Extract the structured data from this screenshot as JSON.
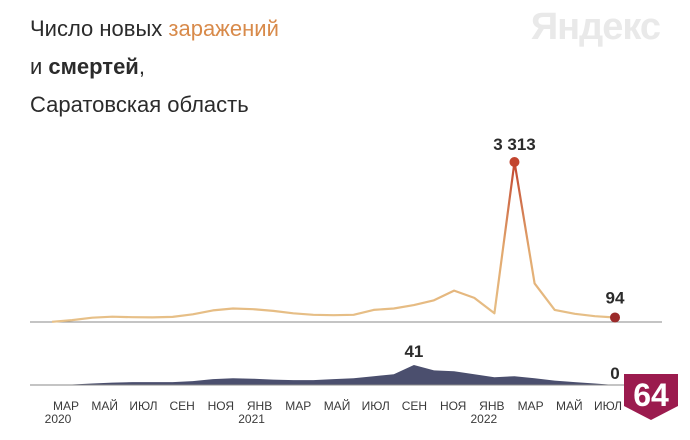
{
  "header": {
    "title_part1": "Число новых ",
    "title_accent": "заражений",
    "title_line2_prefix": "и ",
    "title_line2_bold": "смертей",
    "title_line2_suffix": ",",
    "title_line3": "Саратовская область"
  },
  "brand": {
    "name": "Яндекс"
  },
  "badge": {
    "label": "64",
    "color": "#9b1b4e"
  },
  "colors": {
    "accent": "#d88a4a",
    "cases_low": "#e7c189",
    "cases_high": "#c2452f",
    "deaths_fill": "#4b4f6e",
    "axis": "#8a8a8a"
  },
  "chart_data": [
    {
      "type": "area",
      "name": "cases",
      "x_start": "2020-03",
      "x_end": "2022-07",
      "peak": {
        "x": "2022-02",
        "value": 3313,
        "label": "3 313"
      },
      "last": {
        "x": "2022-07",
        "value": 94,
        "label": "94"
      },
      "points": [
        [
          "2020-03",
          5
        ],
        [
          "2020-04",
          40
        ],
        [
          "2020-05",
          90
        ],
        [
          "2020-06",
          110
        ],
        [
          "2020-07",
          100
        ],
        [
          "2020-08",
          95
        ],
        [
          "2020-09",
          105
        ],
        [
          "2020-10",
          160
        ],
        [
          "2020-11",
          240
        ],
        [
          "2020-12",
          280
        ],
        [
          "2021-01",
          265
        ],
        [
          "2021-02",
          230
        ],
        [
          "2021-03",
          180
        ],
        [
          "2021-04",
          150
        ],
        [
          "2021-05",
          140
        ],
        [
          "2021-06",
          150
        ],
        [
          "2021-07",
          250
        ],
        [
          "2021-08",
          280
        ],
        [
          "2021-09",
          350
        ],
        [
          "2021-10",
          450
        ],
        [
          "2021-11",
          650
        ],
        [
          "2021-12",
          500
        ],
        [
          "2022-01",
          180
        ],
        [
          "2022-02",
          3313
        ],
        [
          "2022-03",
          800
        ],
        [
          "2022-04",
          250
        ],
        [
          "2022-05",
          170
        ],
        [
          "2022-06",
          120
        ],
        [
          "2022-07",
          94
        ]
      ]
    },
    {
      "type": "area",
      "name": "deaths",
      "x_start": "2020-03",
      "x_end": "2022-07",
      "peak": {
        "x": "2021-09",
        "value": 41,
        "label": "41"
      },
      "last": {
        "x": "2022-07",
        "value": 0,
        "label": "0"
      },
      "points": [
        [
          "2020-03",
          0
        ],
        [
          "2020-04",
          1
        ],
        [
          "2020-05",
          3
        ],
        [
          "2020-06",
          5
        ],
        [
          "2020-07",
          6
        ],
        [
          "2020-08",
          6
        ],
        [
          "2020-09",
          6
        ],
        [
          "2020-10",
          8
        ],
        [
          "2020-11",
          12
        ],
        [
          "2020-12",
          14
        ],
        [
          "2021-01",
          13
        ],
        [
          "2021-02",
          11
        ],
        [
          "2021-03",
          10
        ],
        [
          "2021-04",
          10
        ],
        [
          "2021-05",
          12
        ],
        [
          "2021-06",
          14
        ],
        [
          "2021-07",
          18
        ],
        [
          "2021-08",
          22
        ],
        [
          "2021-09",
          41
        ],
        [
          "2021-10",
          30
        ],
        [
          "2021-11",
          28
        ],
        [
          "2021-12",
          22
        ],
        [
          "2022-01",
          16
        ],
        [
          "2022-02",
          18
        ],
        [
          "2022-03",
          14
        ],
        [
          "2022-04",
          9
        ],
        [
          "2022-05",
          6
        ],
        [
          "2022-06",
          3
        ],
        [
          "2022-07",
          0
        ]
      ]
    }
  ],
  "x_axis": {
    "ticks": [
      {
        "label": "МАР",
        "sub": "2020"
      },
      {
        "label": "МАЙ",
        "sub": ""
      },
      {
        "label": "ИЮЛ",
        "sub": ""
      },
      {
        "label": "СЕН",
        "sub": ""
      },
      {
        "label": "НОЯ",
        "sub": ""
      },
      {
        "label": "ЯНВ",
        "sub": "2021"
      },
      {
        "label": "МАР",
        "sub": ""
      },
      {
        "label": "МАЙ",
        "sub": ""
      },
      {
        "label": "ИЮЛ",
        "sub": ""
      },
      {
        "label": "СЕН",
        "sub": ""
      },
      {
        "label": "НОЯ",
        "sub": ""
      },
      {
        "label": "ЯНВ",
        "sub": "2022"
      },
      {
        "label": "МАР",
        "sub": ""
      },
      {
        "label": "МАЙ",
        "sub": ""
      },
      {
        "label": "ИЮЛ",
        "sub": ""
      }
    ]
  }
}
